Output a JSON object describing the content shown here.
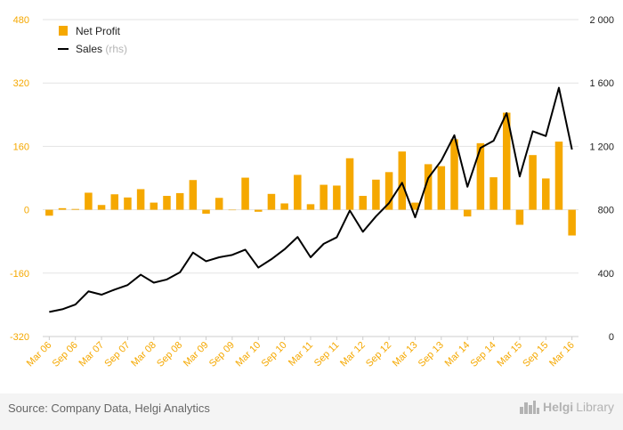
{
  "chart_data": {
    "type": "bar+line",
    "categories": [
      "Mar 06",
      "Jun 06",
      "Sep 06",
      "Dec 06",
      "Mar 07",
      "Jun 07",
      "Sep 07",
      "Dec 07",
      "Mar 08",
      "Jun 08",
      "Sep 08",
      "Dec 08",
      "Mar 09",
      "Jun 09",
      "Sep 09",
      "Dec 09",
      "Mar 10",
      "Jun 10",
      "Sep 10",
      "Dec 10",
      "Mar 11",
      "Jun 11",
      "Sep 11",
      "Dec 11",
      "Mar 12",
      "Jun 12",
      "Sep 12",
      "Dec 12",
      "Mar 13",
      "Jun 13",
      "Sep 13",
      "Dec 13",
      "Mar 14",
      "Jun 14",
      "Sep 14",
      "Dec 14",
      "Mar 15",
      "Jun 15",
      "Sep 15",
      "Dec 15",
      "Mar 16"
    ],
    "x_tick_labels": [
      "Mar 06",
      "Sep 06",
      "Mar 07",
      "Sep 07",
      "Mar 08",
      "Sep 08",
      "Mar 09",
      "Sep 09",
      "Mar 10",
      "Sep 10",
      "Mar 11",
      "Sep 11",
      "Mar 12",
      "Sep 12",
      "Mar 13",
      "Sep 13",
      "Mar 14",
      "Sep 14",
      "Mar 15",
      "Sep 15",
      "Mar 16"
    ],
    "series": [
      {
        "name": "Net Profit",
        "axis": "left",
        "type": "bar",
        "color": "#f5a800",
        "values": [
          -15,
          4,
          2,
          43,
          12,
          39,
          31,
          52,
          18,
          35,
          42,
          75,
          -10,
          30,
          0,
          81,
          -5,
          40,
          16,
          88,
          14,
          63,
          61,
          130,
          35,
          76,
          95,
          147,
          18,
          115,
          110,
          178,
          -17,
          168,
          82,
          245,
          -38,
          138,
          79,
          172,
          -65
        ]
      },
      {
        "name": "Sales",
        "axis": "right",
        "type": "line",
        "color": "#000000",
        "values": [
          155,
          172,
          202,
          285,
          264,
          296,
          325,
          390,
          340,
          360,
          405,
          530,
          475,
          500,
          515,
          548,
          435,
          488,
          550,
          628,
          500,
          585,
          626,
          795,
          661,
          758,
          842,
          970,
          752,
          1000,
          1110,
          1270,
          945,
          1190,
          1235,
          1410,
          1010,
          1295,
          1265,
          1570,
          1180
        ]
      }
    ],
    "legend": [
      {
        "label": "Net Profit",
        "suffix": ""
      },
      {
        "label": "Sales",
        "suffix": "(rhs)"
      }
    ],
    "left_axis": {
      "min": -320,
      "max": 480,
      "ticks": [
        "-320",
        "-160",
        "0",
        "160",
        "320",
        "480"
      ],
      "values": [
        -320,
        -160,
        0,
        160,
        320,
        480
      ],
      "color": "#f5a800"
    },
    "right_axis": {
      "min": 0,
      "max": 2000,
      "ticks": [
        "0",
        "400",
        "800",
        "1 200",
        "1 600",
        "2 000"
      ],
      "values": [
        0,
        400,
        800,
        1200,
        1600,
        2000
      ]
    },
    "legend_position": "top-left",
    "grid": true
  },
  "footer": {
    "source": "Source: Company Data, Helgi Analytics",
    "brand_a": "Helgi",
    "brand_b": "Library"
  }
}
